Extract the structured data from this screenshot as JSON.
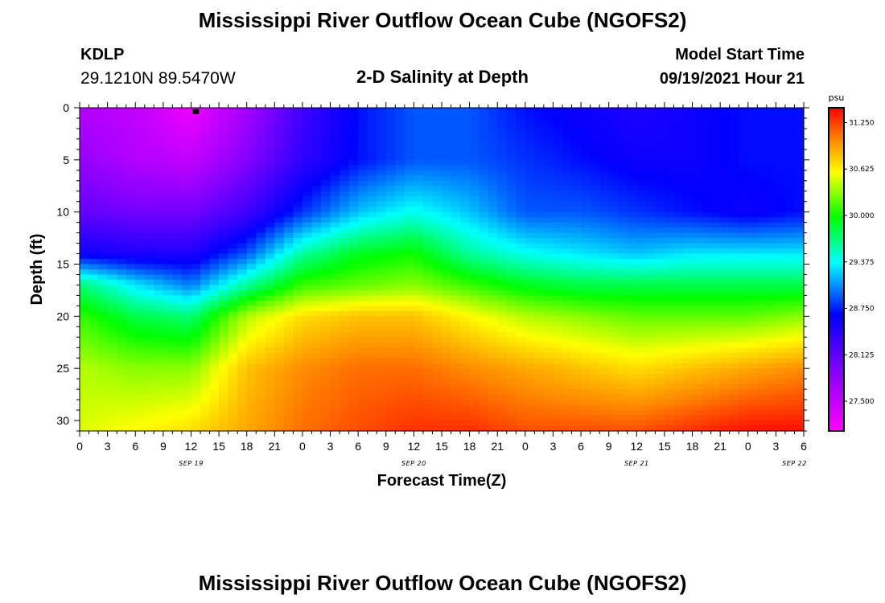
{
  "header": {
    "title": "Mississippi River Outflow Ocean Cube (NGOFS2)",
    "station_id": "KDLP",
    "station_coords": "29.1210N  89.5470W",
    "subtitle": "2-D Salinity at Depth",
    "model_start_label": "Model Start Time",
    "model_start_value": "09/19/2021 Hour 21"
  },
  "footer": {
    "title": "Mississippi River Outflow Ocean Cube (NGOFS2)"
  },
  "chart_data": {
    "type": "heatmap",
    "title": "2-D Salinity at Depth",
    "xlabel": "Forecast Time(Z)",
    "ylabel": "Depth (ft)",
    "x_tick_labels": [
      "0",
      "3",
      "6",
      "9",
      "12",
      "15",
      "18",
      "21",
      "0",
      "3",
      "6",
      "9",
      "12",
      "15",
      "18",
      "21",
      "0",
      "3",
      "6",
      "9",
      "12",
      "15",
      "18",
      "21",
      "0",
      "3",
      "6"
    ],
    "x_date_labels": [
      "SEP 19",
      "SEP 20",
      "SEP 21",
      "SEP 22"
    ],
    "y_ticks": [
      0,
      5,
      10,
      15,
      20,
      25,
      30
    ],
    "ylim": [
      31,
      0
    ],
    "colorbar": {
      "unit": "psu",
      "tick_labels": [
        "31.250",
        "30.625",
        "30.000",
        "29.375",
        "28.750",
        "28.125",
        "27.500"
      ],
      "ticks": [
        31.25,
        30.625,
        30.0,
        29.375,
        28.75,
        28.125,
        27.5
      ],
      "range": [
        27.1,
        31.45
      ]
    },
    "salinity_field": {
      "forecast_hours": [
        0,
        6,
        12,
        18,
        24,
        30,
        36,
        42,
        48,
        54,
        60,
        66,
        72,
        78
      ],
      "depths_ft": [
        0,
        5,
        10,
        14,
        17,
        20,
        25,
        31
      ],
      "values": [
        [
          27.6,
          27.5,
          27.2,
          27.7,
          28.3,
          28.7,
          28.9,
          28.9,
          28.7,
          28.6,
          28.5,
          28.6,
          28.7,
          28.7
        ],
        [
          27.8,
          27.6,
          27.5,
          27.9,
          28.4,
          28.7,
          28.9,
          28.9,
          28.8,
          28.7,
          28.6,
          28.6,
          28.7,
          28.7
        ],
        [
          28.1,
          28.0,
          28.0,
          28.3,
          28.8,
          29.2,
          29.4,
          29.2,
          28.9,
          28.9,
          28.8,
          28.7,
          28.6,
          28.7
        ],
        [
          28.6,
          28.5,
          28.5,
          28.9,
          29.6,
          29.9,
          30.0,
          29.6,
          29.4,
          29.3,
          29.2,
          29.3,
          29.3,
          29.3
        ],
        [
          29.7,
          29.3,
          29.0,
          29.6,
          30.1,
          30.2,
          30.3,
          30.1,
          29.9,
          29.8,
          29.8,
          29.8,
          29.8,
          29.8
        ],
        [
          30.1,
          29.8,
          29.7,
          30.4,
          30.7,
          30.8,
          30.8,
          30.6,
          30.4,
          30.3,
          30.2,
          30.2,
          30.2,
          30.3
        ],
        [
          30.4,
          30.3,
          30.3,
          30.8,
          31.0,
          31.1,
          31.1,
          31.0,
          30.9,
          30.8,
          30.7,
          30.8,
          30.9,
          31.0
        ],
        [
          30.5,
          30.6,
          30.7,
          30.9,
          31.1,
          31.2,
          31.3,
          31.3,
          31.2,
          31.2,
          31.2,
          31.3,
          31.4,
          31.4
        ]
      ]
    },
    "marker": {
      "forecast_hour": 12.5,
      "depth_ft": 0.3
    }
  }
}
